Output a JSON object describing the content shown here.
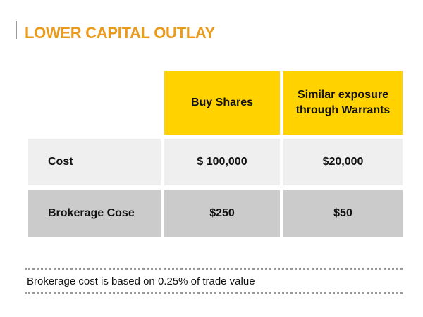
{
  "header": {
    "title": "LOWER CAPITAL OUTLAY"
  },
  "table": {
    "columns": [
      "Buy Shares",
      "Similar exposure through Warrants"
    ],
    "rows": [
      [
        "Cost",
        "$ 100,000",
        "$20,000"
      ],
      [
        "Brokerage Cose",
        "$250",
        "$50"
      ]
    ]
  },
  "footnote": "Brokerage cost is based on 0.25% of trade value"
}
